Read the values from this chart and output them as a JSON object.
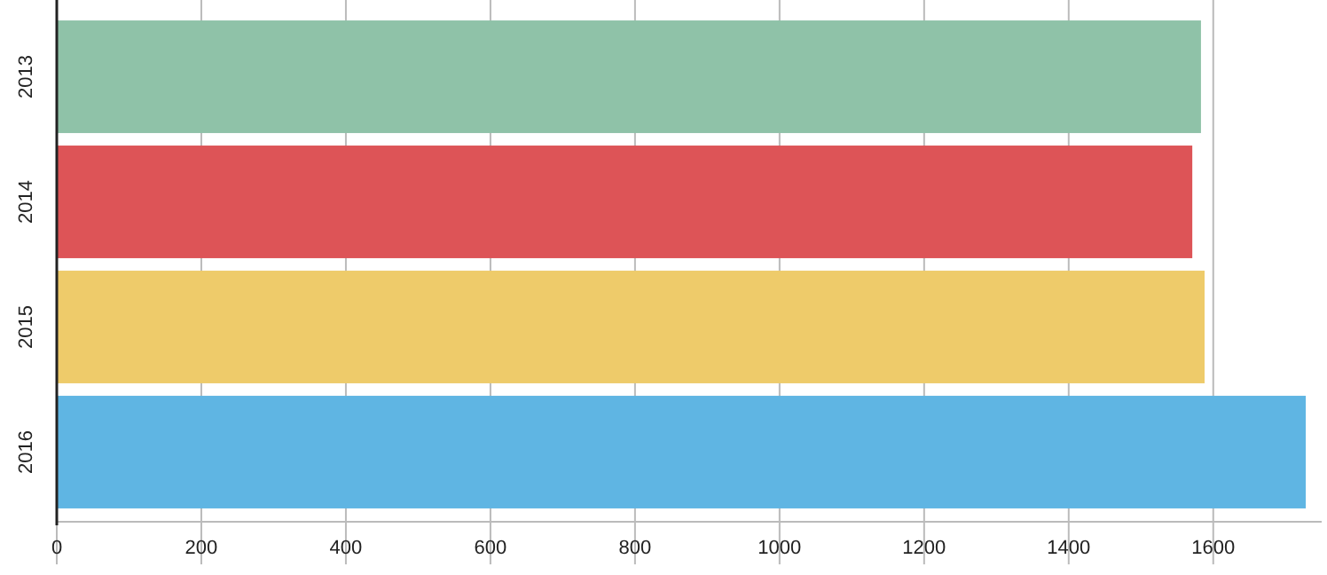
{
  "chart_data": {
    "type": "bar",
    "orientation": "horizontal",
    "categories": [
      "2013",
      "2014",
      "2015",
      "2016"
    ],
    "values": [
      1583,
      1571,
      1588,
      1728
    ],
    "colors": [
      "#8fc2a8",
      "#dd5457",
      "#eecb6a",
      "#5fb5e3"
    ],
    "xlim": [
      0,
      1750
    ],
    "xticks": [
      0,
      200,
      400,
      600,
      800,
      1000,
      1200,
      1400,
      1600
    ],
    "grid": "x"
  }
}
